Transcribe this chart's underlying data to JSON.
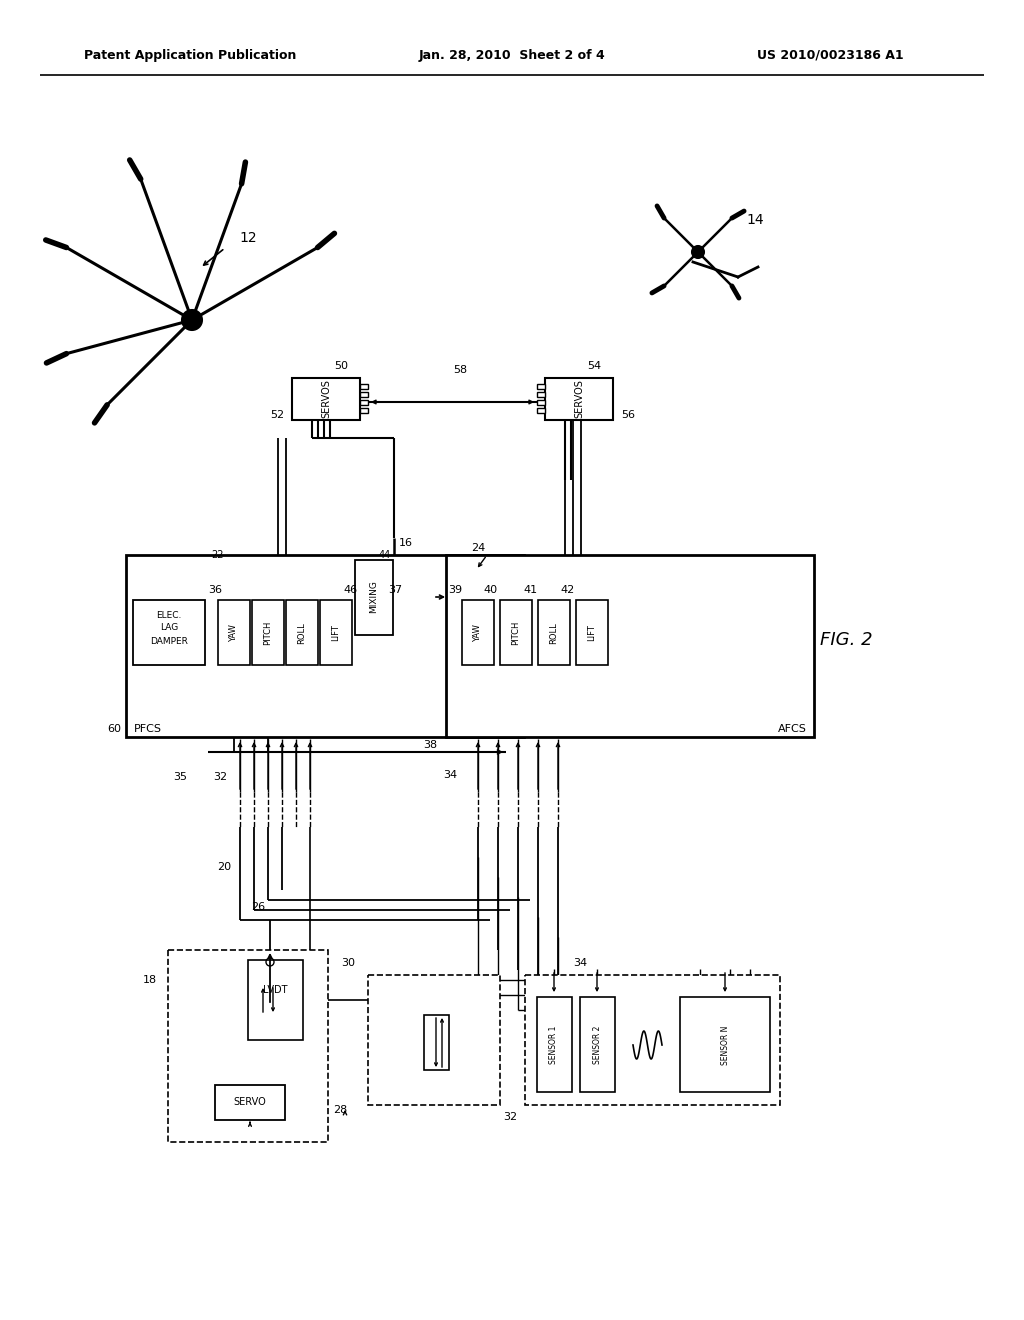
{
  "bg_color": "#ffffff",
  "lc": "#000000",
  "header_left": "Patent Application Publication",
  "header_mid": "Jan. 28, 2010  Sheet 2 of 4",
  "header_right": "US 2010/0023186 A1"
}
